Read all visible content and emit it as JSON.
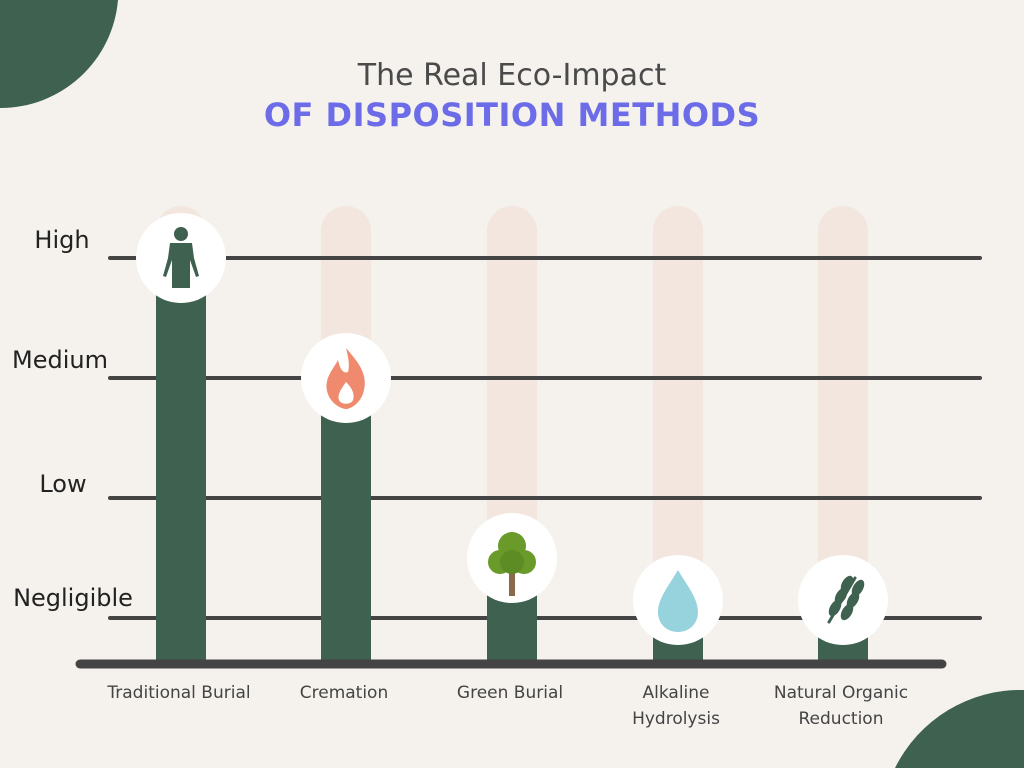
{
  "header": {
    "title_line1": "The Real Eco-Impact",
    "title_line2": "OF DISPOSITION METHODS"
  },
  "colors": {
    "background": "#f5f2ee",
    "bar": "#3f6150",
    "track": "#f2e6df",
    "gridline": "#444444",
    "title_accent": "#6c6ce8",
    "title_text": "#4a4a4a",
    "corner_shape": "#3f6150"
  },
  "chart_data": {
    "type": "bar",
    "title": "The Real Eco-Impact OF DISPOSITION METHODS",
    "categories": [
      "Traditional Burial",
      "Cremation",
      "Green Burial",
      "Alkaline\nHydrolysis",
      "Natural Organic\nReduction"
    ],
    "values": [
      3,
      2,
      0.5,
      0.15,
      0.15
    ],
    "y_levels": [
      {
        "value": 3,
        "label": "High"
      },
      {
        "value": 2,
        "label": "Medium"
      },
      {
        "value": 1,
        "label": "Low"
      },
      {
        "value": 0,
        "label": "Negligible"
      }
    ],
    "icons": [
      "person-icon",
      "flame-icon",
      "tree-icon",
      "water-drop-icon",
      "wheat-icon"
    ],
    "ylim": [
      -0.36,
      3
    ],
    "grid": true,
    "xlabel": "",
    "ylabel": ""
  }
}
